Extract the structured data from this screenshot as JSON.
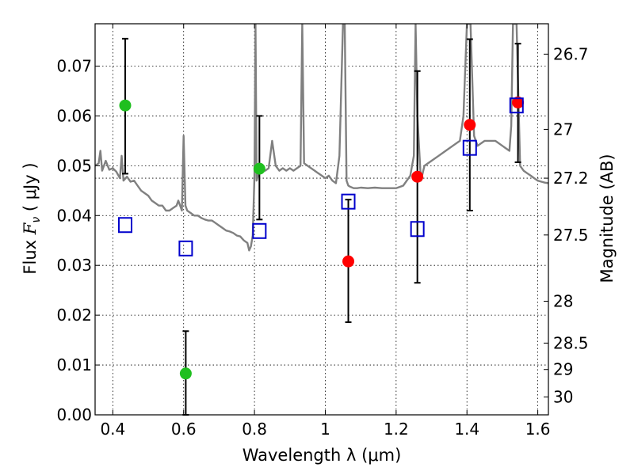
{
  "chart_data": {
    "type": "scatter",
    "xlabel": "Wavelength  λ (μm)",
    "ylabel_prefix": "Flux  ",
    "ylabel_symbol": "F",
    "ylabel_sub": "ν",
    "ylabel_unit": "  ( μJy )",
    "y2label": "Magnitude (AB)",
    "xlim": [
      0.35,
      1.63
    ],
    "ylim": [
      0.0,
      0.0785
    ],
    "grid": true,
    "x_ticks": [
      {
        "value": 0.4,
        "label": "0.4"
      },
      {
        "value": 0.6,
        "label": "0.6"
      },
      {
        "value": 0.8,
        "label": "0.8"
      },
      {
        "value": 1.0,
        "label": "1"
      },
      {
        "value": 1.2,
        "label": "1.2"
      },
      {
        "value": 1.4,
        "label": "1.4"
      },
      {
        "value": 1.6,
        "label": "1.6"
      }
    ],
    "y_ticks": [
      {
        "value": 0.0,
        "label": "0.00"
      },
      {
        "value": 0.01,
        "label": "0.01"
      },
      {
        "value": 0.02,
        "label": "0.02"
      },
      {
        "value": 0.03,
        "label": "0.03"
      },
      {
        "value": 0.04,
        "label": "0.04"
      },
      {
        "value": 0.05,
        "label": "0.05"
      },
      {
        "value": 0.06,
        "label": "0.06"
      },
      {
        "value": 0.07,
        "label": "0.07"
      }
    ],
    "y2_ticks": [
      {
        "flux": 0.0724,
        "label": "26.7"
      },
      {
        "flux": 0.0573,
        "label": "27"
      },
      {
        "flux": 0.0475,
        "label": "27.2"
      },
      {
        "flux": 0.0361,
        "label": "27.5"
      },
      {
        "flux": 0.0228,
        "label": "28"
      },
      {
        "flux": 0.0144,
        "label": "28.5"
      },
      {
        "flux": 0.0091,
        "label": "29"
      },
      {
        "flux": 0.0036,
        "label": "30"
      }
    ],
    "y2_gridlines": [
      0.0475
    ],
    "series": [
      {
        "name": "green-detections",
        "color": "#1fbf1f",
        "marker": "circle",
        "points": [
          {
            "x": 0.435,
            "y": 0.0621,
            "yerr_low": 0.0484,
            "yerr_high": 0.0755
          },
          {
            "x": 0.606,
            "y": 0.0083,
            "yerr_low": 0.0,
            "yerr_high": 0.0168
          },
          {
            "x": 0.814,
            "y": 0.0494,
            "yerr_low": 0.0392,
            "yerr_high": 0.06
          }
        ]
      },
      {
        "name": "red-detections",
        "color": "#ff0000",
        "marker": "circle",
        "points": [
          {
            "x": 1.065,
            "y": 0.0308,
            "yerr_low": 0.0186,
            "yerr_high": 0.0432
          },
          {
            "x": 1.26,
            "y": 0.0478,
            "yerr_low": 0.0265,
            "yerr_high": 0.069
          },
          {
            "x": 1.408,
            "y": 0.0582,
            "yerr_low": 0.041,
            "yerr_high": 0.0754
          },
          {
            "x": 1.544,
            "y": 0.0627,
            "yerr_low": 0.0507,
            "yerr_high": 0.0745
          }
        ]
      },
      {
        "name": "model-photometry",
        "color": "#0000cc",
        "marker": "open-square",
        "points": [
          {
            "x": 0.435,
            "y": 0.0381
          },
          {
            "x": 0.606,
            "y": 0.0334
          },
          {
            "x": 0.814,
            "y": 0.0369
          },
          {
            "x": 1.065,
            "y": 0.0428
          },
          {
            "x": 1.26,
            "y": 0.0373
          },
          {
            "x": 1.408,
            "y": 0.0536
          },
          {
            "x": 1.54,
            "y": 0.0621
          }
        ]
      },
      {
        "name": "template-spectrum",
        "color": "#808080",
        "marker": "line",
        "x": [
          0.35,
          0.36,
          0.365,
          0.37,
          0.38,
          0.39,
          0.4,
          0.41,
          0.42,
          0.425,
          0.43,
          0.44,
          0.45,
          0.46,
          0.47,
          0.48,
          0.49,
          0.5,
          0.51,
          0.52,
          0.53,
          0.54,
          0.55,
          0.56,
          0.57,
          0.58,
          0.585,
          0.59,
          0.595,
          0.6,
          0.605,
          0.61,
          0.62,
          0.63,
          0.64,
          0.65,
          0.66,
          0.67,
          0.68,
          0.69,
          0.7,
          0.71,
          0.72,
          0.73,
          0.74,
          0.75,
          0.76,
          0.77,
          0.78,
          0.785,
          0.79,
          0.795,
          0.8,
          0.803,
          0.806,
          0.81,
          0.82,
          0.83,
          0.84,
          0.85,
          0.86,
          0.87,
          0.88,
          0.89,
          0.9,
          0.91,
          0.92,
          0.93,
          0.935,
          0.94,
          0.95,
          0.96,
          0.97,
          0.98,
          0.99,
          1.0,
          1.01,
          1.02,
          1.03,
          1.04,
          1.05,
          1.055,
          1.06,
          1.065,
          1.07,
          1.08,
          1.09,
          1.1,
          1.12,
          1.14,
          1.16,
          1.18,
          1.2,
          1.22,
          1.24,
          1.25,
          1.255,
          1.26,
          1.27,
          1.28,
          1.3,
          1.32,
          1.34,
          1.36,
          1.38,
          1.39,
          1.4,
          1.41,
          1.42,
          1.43,
          1.44,
          1.45,
          1.46,
          1.48,
          1.5,
          1.52,
          1.525,
          1.53,
          1.535,
          1.54,
          1.55,
          1.56,
          1.57,
          1.58,
          1.59,
          1.6,
          1.61,
          1.62,
          1.63
        ],
        "y": [
          0.05,
          0.0505,
          0.053,
          0.049,
          0.051,
          0.0492,
          0.0495,
          0.0488,
          0.0475,
          0.052,
          0.047,
          0.0478,
          0.0468,
          0.047,
          0.046,
          0.045,
          0.0445,
          0.044,
          0.043,
          0.0425,
          0.042,
          0.042,
          0.041,
          0.041,
          0.0415,
          0.042,
          0.043,
          0.042,
          0.041,
          0.056,
          0.042,
          0.041,
          0.0405,
          0.04,
          0.04,
          0.0395,
          0.0392,
          0.039,
          0.039,
          0.0385,
          0.038,
          0.0375,
          0.037,
          0.0368,
          0.0365,
          0.036,
          0.0358,
          0.035,
          0.0345,
          0.033,
          0.0338,
          0.036,
          0.048,
          0.0785,
          0.047,
          0.048,
          0.05,
          0.049,
          0.0495,
          0.055,
          0.05,
          0.049,
          0.0495,
          0.049,
          0.0495,
          0.049,
          0.0495,
          0.05,
          0.0785,
          0.0505,
          0.05,
          0.0495,
          0.049,
          0.0485,
          0.048,
          0.0475,
          0.048,
          0.047,
          0.0465,
          0.052,
          0.0785,
          0.0785,
          0.047,
          0.046,
          0.0458,
          0.0455,
          0.0455,
          0.0456,
          0.0455,
          0.0456,
          0.0455,
          0.0455,
          0.0455,
          0.046,
          0.048,
          0.052,
          0.0785,
          0.06,
          0.047,
          0.05,
          0.051,
          0.052,
          0.053,
          0.054,
          0.055,
          0.06,
          0.0785,
          0.0785,
          0.056,
          0.054,
          0.0545,
          0.055,
          0.055,
          0.055,
          0.054,
          0.053,
          0.058,
          0.0785,
          0.0785,
          0.0785,
          0.05,
          0.049,
          0.0485,
          0.048,
          0.0475,
          0.047,
          0.0468,
          0.0466,
          0.0465
        ]
      }
    ]
  }
}
